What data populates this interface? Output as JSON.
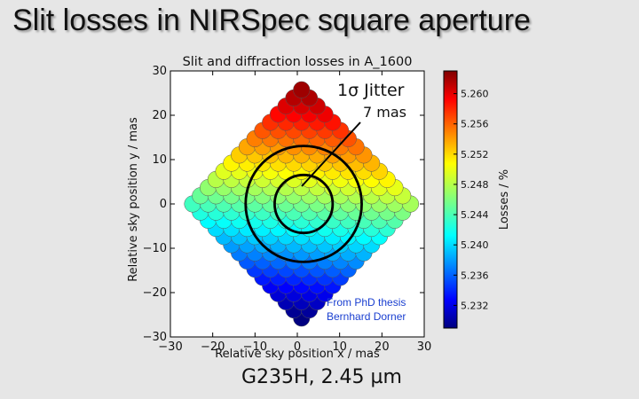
{
  "slide": {
    "title": "Slit losses in NIRSpec square aperture",
    "caption": "G235H, 2.45 µm"
  },
  "annotations": {
    "jitter_label": "1σ Jitter",
    "jitter_value": "7 mas",
    "credit_line1": "From PhD thesis",
    "credit_line2": "Bernhard Dorner",
    "credit_color": "#1a3fd0"
  },
  "chart_data": {
    "type": "scatter",
    "title": "Slit and diffraction losses in A_1600",
    "xlabel": "Relative sky position x / mas",
    "ylabel": "Relative sky position y / mas",
    "xlim": [
      -30,
      30
    ],
    "ylim": [
      -30,
      30
    ],
    "xticks": [
      "−30",
      "−20",
      "−10",
      "0",
      "10",
      "20",
      "30"
    ],
    "yticks": [
      "−30",
      "−20",
      "−10",
      "0",
      "10",
      "20",
      "30"
    ],
    "xtick_values": [
      -30,
      -20,
      -10,
      0,
      10,
      20,
      30
    ],
    "ytick_values": [
      -30,
      -20,
      -10,
      0,
      10,
      20,
      30
    ],
    "grid": {
      "shape": "diamond",
      "step_mas": 3.54,
      "max_index": 7,
      "rotation_deg": 45
    },
    "point_value_model": "losses decrease from top (5.262 %) to bottom (5.229 %) with a slight left-right tilt",
    "value_range": [
      5.229,
      5.262
    ],
    "circles_mas": [
      {
        "center": [
          1.5,
          0
        ],
        "radius": 7
      },
      {
        "center": [
          1.5,
          0
        ],
        "radius": 14
      }
    ],
    "colorbar": {
      "label": "Losses / %",
      "ticks": [
        "5.232",
        "5.236",
        "5.240",
        "5.244",
        "5.248",
        "5.252",
        "5.256",
        "5.260"
      ],
      "tick_values": [
        5.232,
        5.236,
        5.24,
        5.244,
        5.248,
        5.252,
        5.256,
        5.26
      ],
      "range": [
        5.229,
        5.263
      ]
    }
  }
}
